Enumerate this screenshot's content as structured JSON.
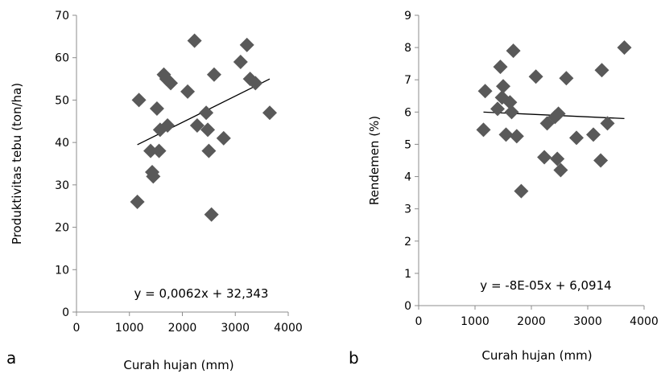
{
  "chart_data": [
    {
      "type": "scatter",
      "panel_label": "a",
      "xlabel": "Curah hujan (mm)",
      "ylabel": "Produktivitas tebu (ton/ha)",
      "xlim": [
        0,
        4000
      ],
      "ylim": [
        0,
        70
      ],
      "xticks": [
        0,
        1000,
        2000,
        3000,
        4000
      ],
      "yticks": [
        0,
        10,
        20,
        30,
        40,
        50,
        60,
        70
      ],
      "grid": false,
      "marker": "diamond",
      "marker_color": "#595959",
      "points": [
        {
          "x": 1180,
          "y": 50
        },
        {
          "x": 1150,
          "y": 26
        },
        {
          "x": 1400,
          "y": 38
        },
        {
          "x": 1430,
          "y": 33
        },
        {
          "x": 1450,
          "y": 32
        },
        {
          "x": 1520,
          "y": 48
        },
        {
          "x": 1560,
          "y": 38
        },
        {
          "x": 1580,
          "y": 43
        },
        {
          "x": 1650,
          "y": 56
        },
        {
          "x": 1700,
          "y": 55
        },
        {
          "x": 1720,
          "y": 44
        },
        {
          "x": 1780,
          "y": 54
        },
        {
          "x": 2100,
          "y": 52
        },
        {
          "x": 2230,
          "y": 64
        },
        {
          "x": 2280,
          "y": 44
        },
        {
          "x": 2450,
          "y": 47
        },
        {
          "x": 2480,
          "y": 43
        },
        {
          "x": 2500,
          "y": 38
        },
        {
          "x": 2550,
          "y": 23
        },
        {
          "x": 2600,
          "y": 56
        },
        {
          "x": 2780,
          "y": 41
        },
        {
          "x": 3100,
          "y": 59
        },
        {
          "x": 3220,
          "y": 63
        },
        {
          "x": 3280,
          "y": 55
        },
        {
          "x": 3380,
          "y": 54
        },
        {
          "x": 3650,
          "y": 47
        }
      ],
      "trendline": {
        "slope": 0.0062,
        "intercept": 32.343,
        "x_range": [
          1150,
          3650
        ]
      },
      "annotation": "y = 0,0062x + 32,343"
    },
    {
      "type": "scatter",
      "panel_label": "b",
      "xlabel": "Curah hujan (mm)",
      "ylabel": "Rendemen (%)",
      "xlim": [
        0,
        4000
      ],
      "ylim": [
        0,
        9
      ],
      "xticks": [
        0,
        1000,
        2000,
        3000,
        4000
      ],
      "yticks": [
        0,
        1,
        2,
        3,
        4,
        5,
        6,
        7,
        8,
        9
      ],
      "grid": false,
      "marker": "diamond",
      "marker_color": "#595959",
      "points": [
        {
          "x": 1180,
          "y": 6.65
        },
        {
          "x": 1150,
          "y": 5.45
        },
        {
          "x": 1400,
          "y": 6.1
        },
        {
          "x": 1450,
          "y": 7.4
        },
        {
          "x": 1480,
          "y": 6.45
        },
        {
          "x": 1500,
          "y": 6.8
        },
        {
          "x": 1550,
          "y": 5.3
        },
        {
          "x": 1620,
          "y": 6.3
        },
        {
          "x": 1650,
          "y": 6.0
        },
        {
          "x": 1680,
          "y": 7.9
        },
        {
          "x": 1740,
          "y": 5.25
        },
        {
          "x": 1820,
          "y": 3.55
        },
        {
          "x": 2080,
          "y": 7.1
        },
        {
          "x": 2230,
          "y": 4.6
        },
        {
          "x": 2280,
          "y": 5.65
        },
        {
          "x": 2420,
          "y": 5.85
        },
        {
          "x": 2460,
          "y": 4.55
        },
        {
          "x": 2480,
          "y": 5.95
        },
        {
          "x": 2520,
          "y": 4.2
        },
        {
          "x": 2620,
          "y": 7.05
        },
        {
          "x": 2800,
          "y": 5.2
        },
        {
          "x": 3100,
          "y": 5.3
        },
        {
          "x": 3230,
          "y": 4.5
        },
        {
          "x": 3250,
          "y": 7.3
        },
        {
          "x": 3350,
          "y": 5.65
        },
        {
          "x": 3650,
          "y": 8.0
        }
      ],
      "trendline": {
        "slope": -8e-05,
        "intercept": 6.0914,
        "x_range": [
          1150,
          3650
        ]
      },
      "annotation": "y = -8E-05x + 6,0914"
    }
  ]
}
